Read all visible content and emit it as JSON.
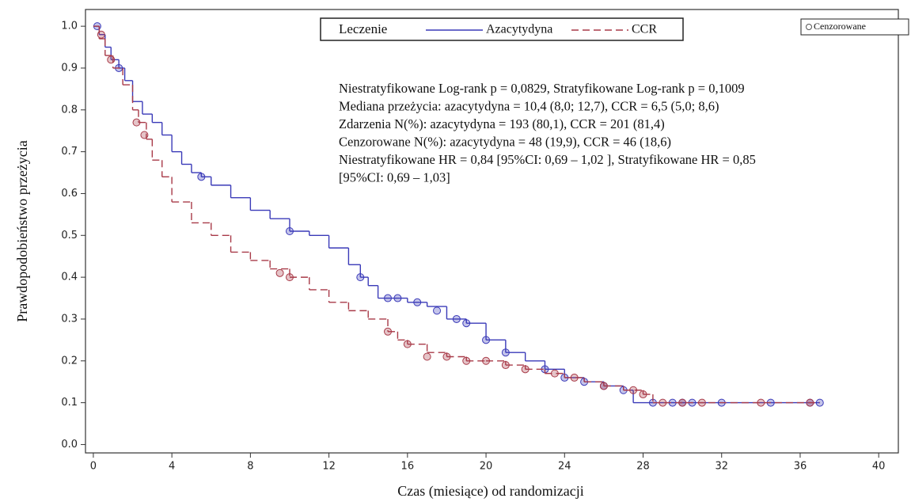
{
  "chart_data": {
    "type": "km",
    "xlabel": "Czas (miesiące) od randomizacji",
    "ylabel": "Prawdopodobieństwo przeżycia",
    "xlim": [
      -0.4,
      41
    ],
    "ylim": [
      -0.02,
      1.04
    ],
    "xticks": [
      0,
      4,
      8,
      12,
      16,
      20,
      24,
      28,
      32,
      36,
      40
    ],
    "yticks": [
      {
        "value": 0,
        "label": "0.0"
      },
      {
        "value": 0.1,
        "label": "0.1"
      },
      {
        "value": 0.2,
        "label": "0.2"
      },
      {
        "value": 0.3,
        "label": "0.3"
      },
      {
        "value": 0.4,
        "label": "0.4"
      },
      {
        "value": 0.5,
        "label": "0.5"
      },
      {
        "value": 0.6,
        "label": "0.6"
      },
      {
        "value": 0.7,
        "label": "0.7"
      },
      {
        "value": 0.8,
        "label": "0.8"
      },
      {
        "value": 0.9,
        "label": "0.9"
      },
      {
        "value": 1,
        "label": "1.0"
      }
    ],
    "legend_title": "Leczenie",
    "censor_label": "Cenzorowane",
    "annotations": [
      "Niestratyfikowane Log-rank p = 0,0829, Stratyfikowane Log-rank p = 0,1009",
      "Mediana przeżycia: azacytydyna = 10,4 (8,0; 12,7), CCR = 6,5 (5,0; 8,6)",
      "Zdarzenia N(%): azacytydyna = 193 (80,1), CCR = 201 (81,4)",
      "Cenzorowane N(%): azacytydyna = 48 (19,9), CCR = 46 (18,6)",
      "Niestratyfikowane HR = 0,84 [95%CI: 0,69 – 1,02 ], Stratyfikowane HR = 0,85",
      "[95%CI: 0,69 – 1,03]"
    ],
    "series": [
      {
        "name": "Azacytydyna",
        "color": "#3a3ab8",
        "dash": false,
        "x": [
          0,
          0.3,
          0.6,
          0.9,
          1.3,
          1.6,
          2,
          2.5,
          3,
          3.5,
          4,
          4.5,
          5,
          5.5,
          6,
          7,
          8,
          9,
          10,
          11,
          12,
          13,
          13.6,
          14,
          14.5,
          16,
          17,
          18,
          19,
          20,
          21,
          22,
          23,
          24,
          25,
          26,
          27,
          27.5,
          37
        ],
        "values": [
          1,
          0.98,
          0.95,
          0.92,
          0.9,
          0.87,
          0.82,
          0.79,
          0.77,
          0.74,
          0.7,
          0.67,
          0.65,
          0.64,
          0.62,
          0.59,
          0.56,
          0.54,
          0.51,
          0.5,
          0.47,
          0.43,
          0.4,
          0.38,
          0.35,
          0.34,
          0.33,
          0.3,
          0.29,
          0.25,
          0.22,
          0.2,
          0.18,
          0.16,
          0.15,
          0.14,
          0.13,
          0.1,
          0.1
        ],
        "censored_x": [
          0.2,
          1.3,
          5.5,
          10,
          13.6,
          15,
          15.5,
          16.5,
          17.5,
          18.5,
          19,
          20,
          21,
          23,
          24,
          25,
          26,
          27,
          28.5,
          29.5,
          30,
          30.5,
          32,
          34.5,
          36.5,
          37
        ],
        "censored_y": [
          1,
          0.9,
          0.64,
          0.51,
          0.4,
          0.35,
          0.35,
          0.34,
          0.32,
          0.3,
          0.29,
          0.25,
          0.22,
          0.18,
          0.16,
          0.15,
          0.14,
          0.13,
          0.1,
          0.1,
          0.1,
          0.1,
          0.1,
          0.1,
          0.1,
          0.1
        ]
      },
      {
        "name": "CCR",
        "color": "#a83a48",
        "dash": true,
        "x": [
          0,
          0.3,
          0.6,
          1,
          1.5,
          2,
          2.3,
          2.7,
          3,
          3.5,
          4,
          5,
          6,
          7,
          8,
          9,
          10,
          11,
          12,
          13,
          14,
          15,
          15.5,
          16,
          17,
          18,
          19,
          20,
          21,
          22,
          23,
          24,
          25,
          26,
          27,
          28,
          28.5,
          37
        ],
        "values": [
          1,
          0.97,
          0.93,
          0.9,
          0.86,
          0.8,
          0.77,
          0.73,
          0.68,
          0.64,
          0.58,
          0.53,
          0.5,
          0.46,
          0.44,
          0.42,
          0.4,
          0.37,
          0.34,
          0.32,
          0.3,
          0.27,
          0.25,
          0.24,
          0.22,
          0.21,
          0.2,
          0.2,
          0.19,
          0.18,
          0.17,
          0.16,
          0.15,
          0.14,
          0.13,
          0.12,
          0.1,
          0.1
        ],
        "censored_x": [
          0.4,
          0.9,
          2.2,
          2.6,
          9.5,
          10,
          15,
          16,
          17,
          18,
          19,
          20,
          21,
          22,
          23.5,
          24.5,
          26,
          27.5,
          28,
          29,
          30,
          31,
          34,
          36.5
        ],
        "censored_y": [
          0.98,
          0.92,
          0.77,
          0.74,
          0.41,
          0.4,
          0.27,
          0.24,
          0.21,
          0.21,
          0.2,
          0.2,
          0.19,
          0.18,
          0.17,
          0.16,
          0.14,
          0.13,
          0.12,
          0.1,
          0.1,
          0.1,
          0.1,
          0.1
        ]
      }
    ]
  }
}
